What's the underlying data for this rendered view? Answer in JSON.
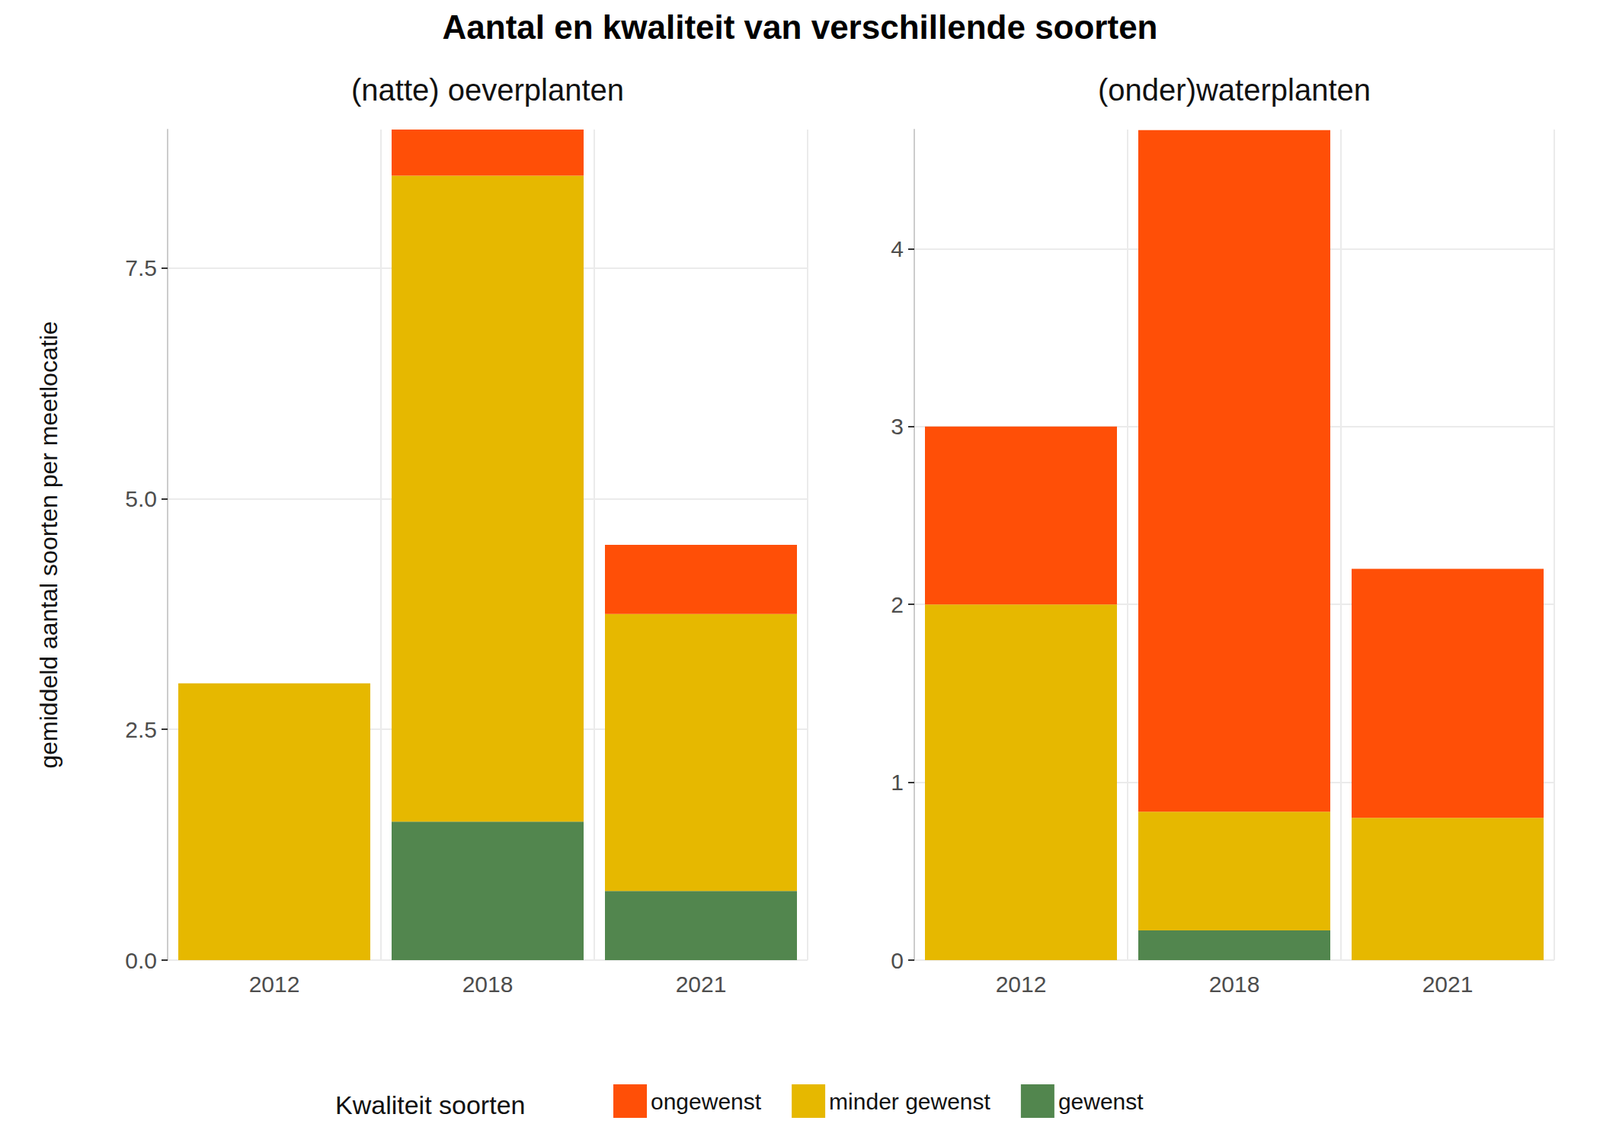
{
  "title": "Aantal en kwaliteit van verschillende soorten",
  "y_label": "gemiddeld aantal soorten per meetlocatie",
  "legend_title": "Kwaliteit soorten",
  "chart_data": [
    {
      "type": "bar",
      "title": "(natte) oeverplanten",
      "stacked": true,
      "grid": true,
      "legend": "bottom",
      "categories": [
        "2012",
        "2018",
        "2021"
      ],
      "series": [
        {
          "name": "gewenst",
          "color": "#52864E",
          "values": [
            0,
            1.5,
            0.75
          ]
        },
        {
          "name": "minder gewenst",
          "color": "#E6B800",
          "values": [
            3.0,
            7.0,
            3.0
          ]
        },
        {
          "name": "ongewenst",
          "color": "#FF4F07",
          "values": [
            0,
            0.5,
            0.75
          ]
        }
      ],
      "ylim": [
        0,
        9
      ],
      "yticks": [
        {
          "value": 0,
          "label": "0.0"
        },
        2.5,
        {
          "value": 5,
          "label": "5.0"
        },
        7.5
      ]
    },
    {
      "type": "bar",
      "title": "(onder)waterplanten",
      "stacked": true,
      "grid": true,
      "legend": "bottom",
      "categories": [
        "2012",
        "2018",
        "2021"
      ],
      "series": [
        {
          "name": "gewenst",
          "color": "#52864E",
          "values": [
            0,
            0.167,
            0
          ]
        },
        {
          "name": "minder gewenst",
          "color": "#E6B800",
          "values": [
            2.0,
            0.667,
            0.8
          ]
        },
        {
          "name": "ongewenst",
          "color": "#FF4F07",
          "values": [
            1.0,
            3.833,
            1.4
          ]
        }
      ],
      "ylim": [
        0,
        4.67
      ],
      "yticks": [
        0,
        1,
        2,
        3,
        4
      ]
    }
  ]
}
